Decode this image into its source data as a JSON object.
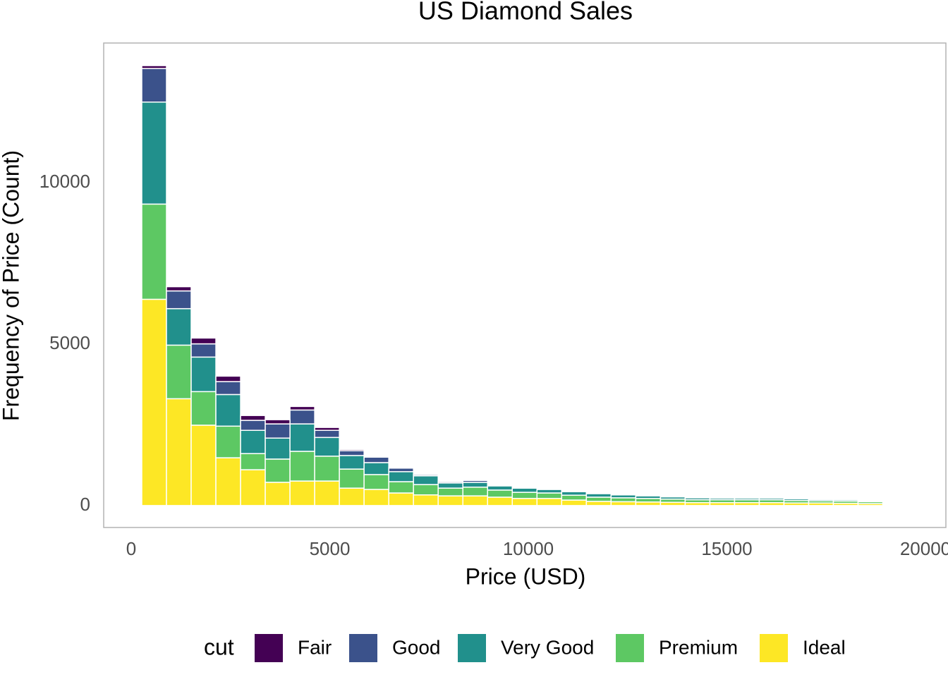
{
  "chart_data": {
    "type": "histogram",
    "title": "US Diamond Sales",
    "x_label": "Price (USD)",
    "y_label": "Frequency of Price (Count)",
    "legend_title": "cut",
    "legend_position": "bottom",
    "grid": false,
    "bins": [
      266,
      888,
      1510,
      2132,
      2754,
      3376,
      3998,
      4620,
      5242,
      5864,
      6486,
      7108,
      7730,
      8352,
      8974,
      9596,
      10218,
      10840,
      11462,
      12084,
      12706,
      13328,
      13950,
      14572,
      15194,
      15816,
      16438,
      17060,
      17682,
      18304,
      18926
    ],
    "series": [
      {
        "name": "Fair",
        "color": "#440154",
        "values": [
          90,
          130,
          180,
          170,
          150,
          130,
          110,
          90,
          40,
          30,
          20,
          20,
          20,
          20,
          10,
          10,
          10,
          10,
          10,
          10,
          10,
          10,
          10,
          10,
          10,
          10,
          10,
          10,
          10,
          10
        ]
      },
      {
        "name": "Good",
        "color": "#3b528b",
        "values": [
          1040,
          550,
          410,
          400,
          310,
          440,
          430,
          220,
          150,
          170,
          110,
          40,
          40,
          60,
          20,
          20,
          20,
          20,
          20,
          20,
          20,
          20,
          20,
          20,
          20,
          20,
          20,
          20,
          20,
          10
        ]
      },
      {
        "name": "Very Good",
        "color": "#21908c",
        "values": [
          3160,
          1130,
          1070,
          980,
          720,
          650,
          850,
          580,
          420,
          370,
          310,
          270,
          160,
          150,
          130,
          130,
          110,
          110,
          110,
          90,
          80,
          70,
          60,
          50,
          50,
          50,
          50,
          40,
          40,
          30
        ]
      },
      {
        "name": "Premium",
        "color": "#5dc863",
        "values": [
          2950,
          1660,
          1040,
          980,
          500,
          720,
          920,
          770,
          590,
          460,
          350,
          320,
          240,
          270,
          220,
          190,
          170,
          150,
          130,
          120,
          110,
          100,
          90,
          90,
          90,
          90,
          80,
          70,
          70,
          60
        ]
      },
      {
        "name": "Ideal",
        "color": "#fde725",
        "values": [
          6390,
          3310,
          2490,
          1480,
          1110,
          720,
          760,
          760,
          540,
          500,
          390,
          330,
          300,
          300,
          260,
          220,
          220,
          170,
          130,
          120,
          110,
          100,
          90,
          90,
          90,
          90,
          80,
          80,
          70,
          60
        ]
      }
    ],
    "xlim": [
      -693,
      20515
    ],
    "ylim": [
      -680,
      14330
    ],
    "xticks": [
      0,
      5000,
      10000,
      15000,
      20000
    ],
    "yticks": [
      0,
      5000,
      10000
    ]
  }
}
